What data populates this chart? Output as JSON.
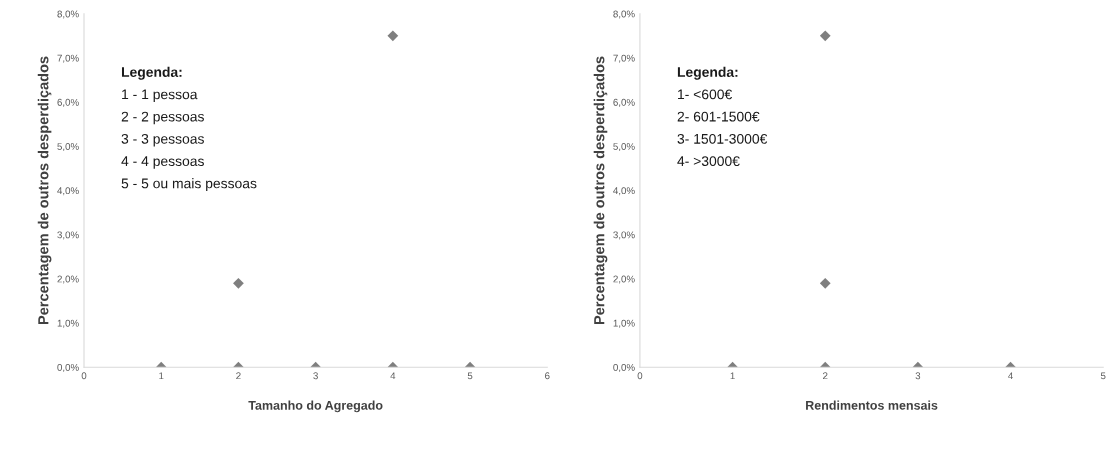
{
  "chart_data": [
    {
      "type": "scatter",
      "xlabel": "Tamanho do Agregado",
      "ylabel": "Percentagem de outros desperdiçados",
      "x": [
        1,
        2,
        2,
        3,
        4,
        4,
        5
      ],
      "series": [
        {
          "color": "#7f7f7f",
          "values": [
            0,
            0,
            1.9,
            0,
            0,
            7.5,
            0
          ]
        }
      ],
      "marker": "diamond",
      "xlim": [
        0,
        6
      ],
      "xticks": [
        0,
        1,
        2,
        3,
        4,
        5,
        6
      ],
      "ylim": [
        0,
        8
      ],
      "yticks": [
        {
          "value": 0,
          "label": "0,0%"
        },
        {
          "value": 1,
          "label": "1,0%"
        },
        {
          "value": 2,
          "label": "2,0%"
        },
        {
          "value": 3,
          "label": "3,0%"
        },
        {
          "value": 4,
          "label": "4,0%"
        },
        {
          "value": 5,
          "label": "5,0%"
        },
        {
          "value": 6,
          "label": "6,0%"
        },
        {
          "value": 7,
          "label": "7,0%"
        },
        {
          "value": 8,
          "label": "8,0%"
        }
      ],
      "grid": false,
      "annotations": [
        "Legenda:",
        "1 - 1 pessoa",
        "2 - 2 pessoas",
        "3 - 3 pessoas",
        "4 - 4 pessoas",
        "5 - 5 ou mais pessoas"
      ]
    },
    {
      "type": "scatter",
      "xlabel": "Rendimentos mensais",
      "ylabel": "Percentagem de outros desperdiçados",
      "x": [
        1,
        2,
        2,
        2,
        3,
        4
      ],
      "series": [
        {
          "color": "#7f7f7f",
          "values": [
            0,
            0,
            1.9,
            7.5,
            0,
            0
          ]
        }
      ],
      "marker": "diamond",
      "xlim": [
        0,
        5
      ],
      "xticks": [
        0,
        1,
        2,
        3,
        4,
        5
      ],
      "ylim": [
        0,
        8
      ],
      "yticks": [
        {
          "value": 0,
          "label": "0,0%"
        },
        {
          "value": 1,
          "label": "1,0%"
        },
        {
          "value": 2,
          "label": "2,0%"
        },
        {
          "value": 3,
          "label": "3,0%"
        },
        {
          "value": 4,
          "label": "4,0%"
        },
        {
          "value": 5,
          "label": "5,0%"
        },
        {
          "value": 6,
          "label": "6,0%"
        },
        {
          "value": 7,
          "label": "7,0%"
        },
        {
          "value": 8,
          "label": "8,0%"
        }
      ],
      "grid": false,
      "annotations": [
        "Legenda:",
        "1- <600€",
        "2- 601-1500€",
        "3- 1501-3000€",
        "4- >3000€"
      ]
    }
  ]
}
